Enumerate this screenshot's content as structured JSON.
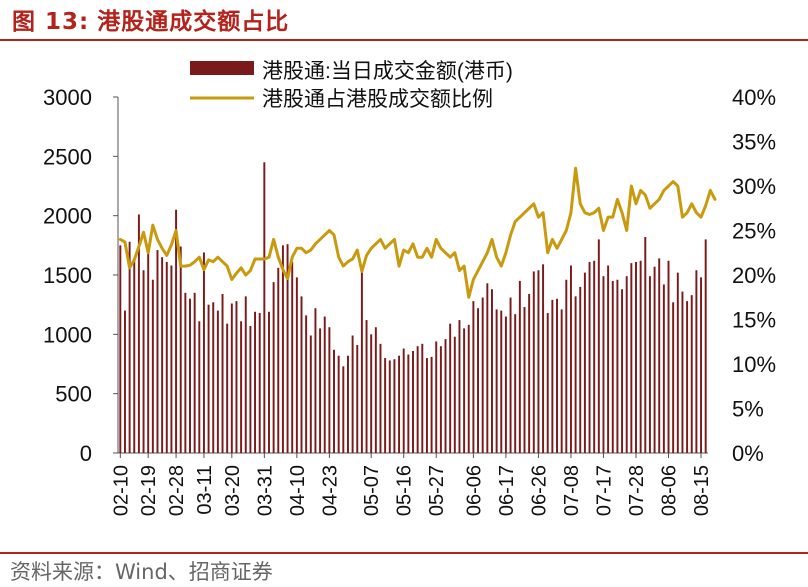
{
  "figure": {
    "label": "图 13:",
    "title": "港股通成交额占比",
    "source": "资料来源：Wind、招商证券"
  },
  "colors": {
    "bar": "#7b1a1a",
    "line": "#c99a0e",
    "accent": "#b4231b"
  },
  "chart_data": {
    "type": "bar+line",
    "title": "港股通成交额占比",
    "legend": {
      "placement": "top",
      "bar_label": "港股通:当日成交金额(港币)",
      "line_label": "港股通占港股成交额比例"
    },
    "y_left": {
      "min": 0,
      "max": 3000,
      "ticks": [
        0,
        500,
        1000,
        1500,
        2000,
        2500,
        3000
      ]
    },
    "y_right": {
      "min": 0,
      "max": 40,
      "ticks": [
        "0%",
        "5%",
        "10%",
        "15%",
        "20%",
        "25%",
        "30%",
        "35%",
        "40%"
      ]
    },
    "x_tick_labels": [
      "02-10",
      "02-19",
      "02-28",
      "03-11",
      "03-20",
      "03-31",
      "04-10",
      "04-23",
      "05-07",
      "05-16",
      "05-27",
      "06-06",
      "06-17",
      "06-26",
      "07-08",
      "07-17",
      "07-28",
      "08-06",
      "08-15"
    ],
    "x_tick_positions": [
      0,
      6,
      12,
      18,
      24,
      31,
      38,
      45,
      54,
      61,
      68,
      76,
      83,
      90,
      97,
      104,
      111,
      118,
      125
    ],
    "series": [
      {
        "name": "港股通:当日成交金额(港币)",
        "kind": "bar",
        "axis": "left",
        "values": [
          1750,
          1200,
          1780,
          1620,
          2010,
          1540,
          1700,
          1460,
          1710,
          1650,
          1610,
          1580,
          2050,
          1740,
          1350,
          1300,
          1350,
          1110,
          1690,
          1250,
          1270,
          1200,
          1340,
          1090,
          1260,
          1280,
          1110,
          1320,
          1070,
          1190,
          1180,
          2450,
          1190,
          1440,
          1560,
          1750,
          1760,
          1610,
          1480,
          1320,
          1160,
          990,
          1220,
          1050,
          1150,
          1060,
          870,
          820,
          730,
          820,
          990,
          910,
          1560,
          1120,
          1000,
          1060,
          920,
          800,
          780,
          790,
          820,
          880,
          830,
          860,
          900,
          920,
          800,
          810,
          940,
          900,
          960,
          1090,
          980,
          1120,
          1050,
          1080,
          1280,
          1220,
          1310,
          1430,
          1380,
          1210,
          1200,
          1150,
          1310,
          1170,
          1450,
          1230,
          1340,
          1530,
          1540,
          1590,
          1180,
          1290,
          1300,
          1210,
          1460,
          1580,
          1320,
          1400,
          1520,
          1610,
          1620,
          1800,
          1490,
          1580,
          1450,
          1460,
          1380,
          1490,
          1600,
          1610,
          1620,
          1820,
          1490,
          1570,
          1640,
          1420,
          1620,
          1270,
          1520,
          1360,
          1280,
          1330,
          1540,
          1480,
          1800
        ]
      },
      {
        "name": "港股通占港股成交额比例",
        "kind": "line",
        "axis": "right",
        "values": [
          24.0,
          23.7,
          20.8,
          21.7,
          23.2,
          24.8,
          22.5,
          25.6,
          24.0,
          23.0,
          22.2,
          23.4,
          25.0,
          21.0,
          21.0,
          21.1,
          21.5,
          22.0,
          20.6,
          21.7,
          21.5,
          22.0,
          21.5,
          21.0,
          19.5,
          20.2,
          20.8,
          20.0,
          20.5,
          21.8,
          21.8,
          21.8,
          22.0,
          24.0,
          22.0,
          20.6,
          19.6,
          22.0,
          23.0,
          23.0,
          22.5,
          22.8,
          23.5,
          24.0,
          24.5,
          25.0,
          24.5,
          22.0,
          21.0,
          21.5,
          21.8,
          22.8,
          20.4,
          22.2,
          23.0,
          23.5,
          24.0,
          23.0,
          23.5,
          24.0,
          21.0,
          22.8,
          22.5,
          23.5,
          22.0,
          22.0,
          23.0,
          22.0,
          24.0,
          23.0,
          22.5,
          22.0,
          22.5,
          20.5,
          21.0,
          17.5,
          19.5,
          20.5,
          21.5,
          22.5,
          24.0,
          22.0,
          21.0,
          22.5,
          24.5,
          26.0,
          26.5,
          27.0,
          27.5,
          28.0,
          26.5,
          27.0,
          22.5,
          24.0,
          23.0,
          24.0,
          25.0,
          27.0,
          32.0,
          28.0,
          27.0,
          26.8,
          27.0,
          27.5,
          25.0,
          26.5,
          26.5,
          28.5,
          27.0,
          25.0,
          30.0,
          28.0,
          29.5,
          29.0,
          27.5,
          28.0,
          28.5,
          29.5,
          30.0,
          30.5,
          30.0,
          26.5,
          27.0,
          28.0,
          27.0,
          26.5,
          27.8,
          29.5,
          28.5
        ]
      }
    ]
  }
}
